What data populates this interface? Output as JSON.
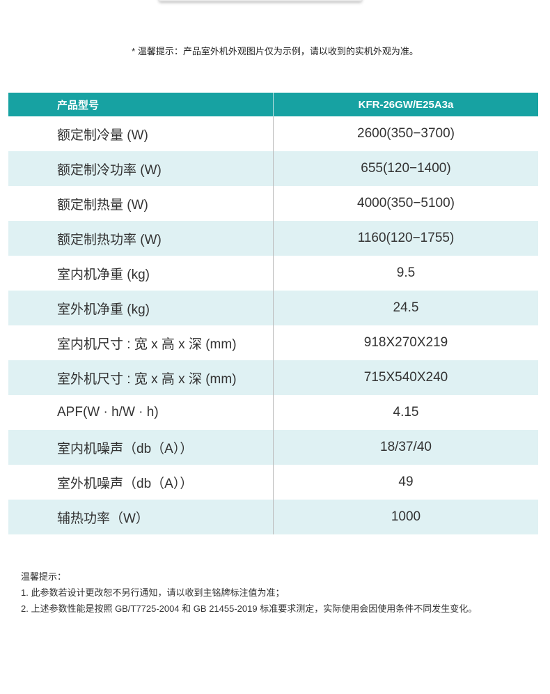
{
  "top_tip": "* 温馨提示：产品室外机外观图片仅为示例，请以收到的实机外观为准。",
  "colors": {
    "header": "#17a2a2",
    "alt_row": "#dff1f3"
  },
  "table": {
    "header": [
      "产品型号",
      "KFR-26GW/E25A3a"
    ],
    "rows": [
      [
        "额定制冷量 (W)",
        "2600(350−3700)"
      ],
      [
        "额定制冷功率 (W)",
        "655(120−1400)"
      ],
      [
        "额定制热量 (W)",
        "4000(350−5100)"
      ],
      [
        "额定制热功率 (W)",
        "1160(120−1755)"
      ],
      [
        "室内机净重 (kg)",
        "9.5"
      ],
      [
        "室外机净重 (kg)",
        "24.5"
      ],
      [
        "室内机尺寸 : 宽 x 高 x 深 (mm)",
        "918X270X219"
      ],
      [
        "室外机尺寸 : 宽 x 高 x 深 (mm)",
        "715X540X240"
      ],
      [
        "APF(W · h/W · h)",
        "4.15"
      ],
      [
        "室内机噪声（db（A））",
        "18/37/40"
      ],
      [
        "室外机噪声（db（A））",
        "49"
      ],
      [
        "辅热功率（W）",
        "1000"
      ]
    ]
  },
  "notes": {
    "title": "温馨提示：",
    "items": [
      "1. 此参数若设计更改恕不另行通知，请以收到主铭牌标注值为准；",
      "2. 上述参数性能是按照 GB/T7725-2004 和 GB 21455-2019 标准要求测定，实际使用会因使用条件不同发生变化。"
    ]
  }
}
